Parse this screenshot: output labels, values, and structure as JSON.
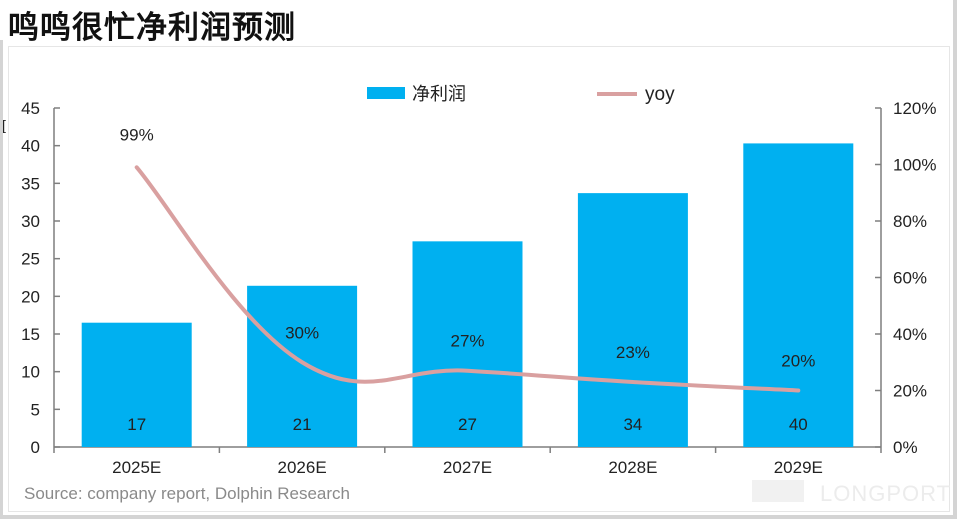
{
  "title": "鸣鸣很忙净利润预测",
  "source": "Source: company report, Dolphin Research",
  "watermark": "DolphinResearch",
  "brand": "LONGPORT",
  "bracket": "[",
  "colors": {
    "bar": "#00b0f0",
    "line": "#d9a0a0"
  },
  "chart_data": {
    "type": "bar+line",
    "categories": [
      "2025E",
      "2026E",
      "2027E",
      "2028E",
      "2029E"
    ],
    "series": [
      {
        "name": "净利润",
        "type": "bar",
        "axis": "left",
        "values": [
          16.5,
          21.4,
          27.3,
          33.7,
          40.3
        ],
        "labels": [
          "17",
          "21",
          "27",
          "34",
          "40"
        ]
      },
      {
        "name": "yoy",
        "type": "line",
        "axis": "right",
        "values": [
          0.99,
          0.3,
          0.27,
          0.23,
          0.2
        ],
        "labels": [
          "99%",
          "30%",
          "27%",
          "23%",
          "20%"
        ]
      }
    ],
    "left_axis": {
      "min": 0,
      "max": 45,
      "step": 5,
      "ticks": [
        "0",
        "5",
        "10",
        "15",
        "20",
        "25",
        "30",
        "35",
        "40",
        "45"
      ]
    },
    "right_axis": {
      "min": 0,
      "max": 1.2,
      "step": 0.2,
      "ticks": [
        "0%",
        "20%",
        "40%",
        "60%",
        "80%",
        "100%",
        "120%"
      ]
    },
    "legend": "top-center",
    "grid": false
  }
}
